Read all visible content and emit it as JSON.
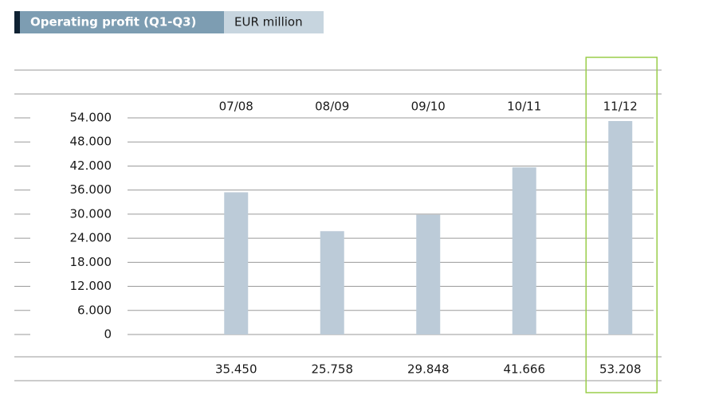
{
  "chart_data": {
    "type": "bar",
    "title": "Operating profit (Q1-Q3)",
    "unit": "EUR million",
    "categories": [
      "07/08",
      "08/09",
      "09/10",
      "10/11",
      "11/12"
    ],
    "values": [
      35450,
      25758,
      29848,
      41666,
      53208
    ],
    "value_labels": [
      "35.450",
      "25.758",
      "29.848",
      "41.666",
      "53.208"
    ],
    "color": "#bccbd8",
    "highlight_category": 4,
    "highlight_color": "#9acd4a",
    "ylim": [
      0,
      54000
    ],
    "yticks": [
      0,
      {
        "value": 6000,
        "label": "6.000"
      },
      {
        "value": 12000,
        "label": "12.000"
      },
      {
        "value": 18000,
        "label": "18.000"
      },
      {
        "value": 24000,
        "label": "24.000"
      },
      {
        "value": 30000,
        "label": "30.000"
      },
      {
        "value": 36000,
        "label": "36.000"
      },
      {
        "value": 42000,
        "label": "42.000"
      },
      {
        "value": 48000,
        "label": "48.000"
      },
      {
        "value": 54000,
        "label": "54.000"
      }
    ],
    "grid": true
  }
}
